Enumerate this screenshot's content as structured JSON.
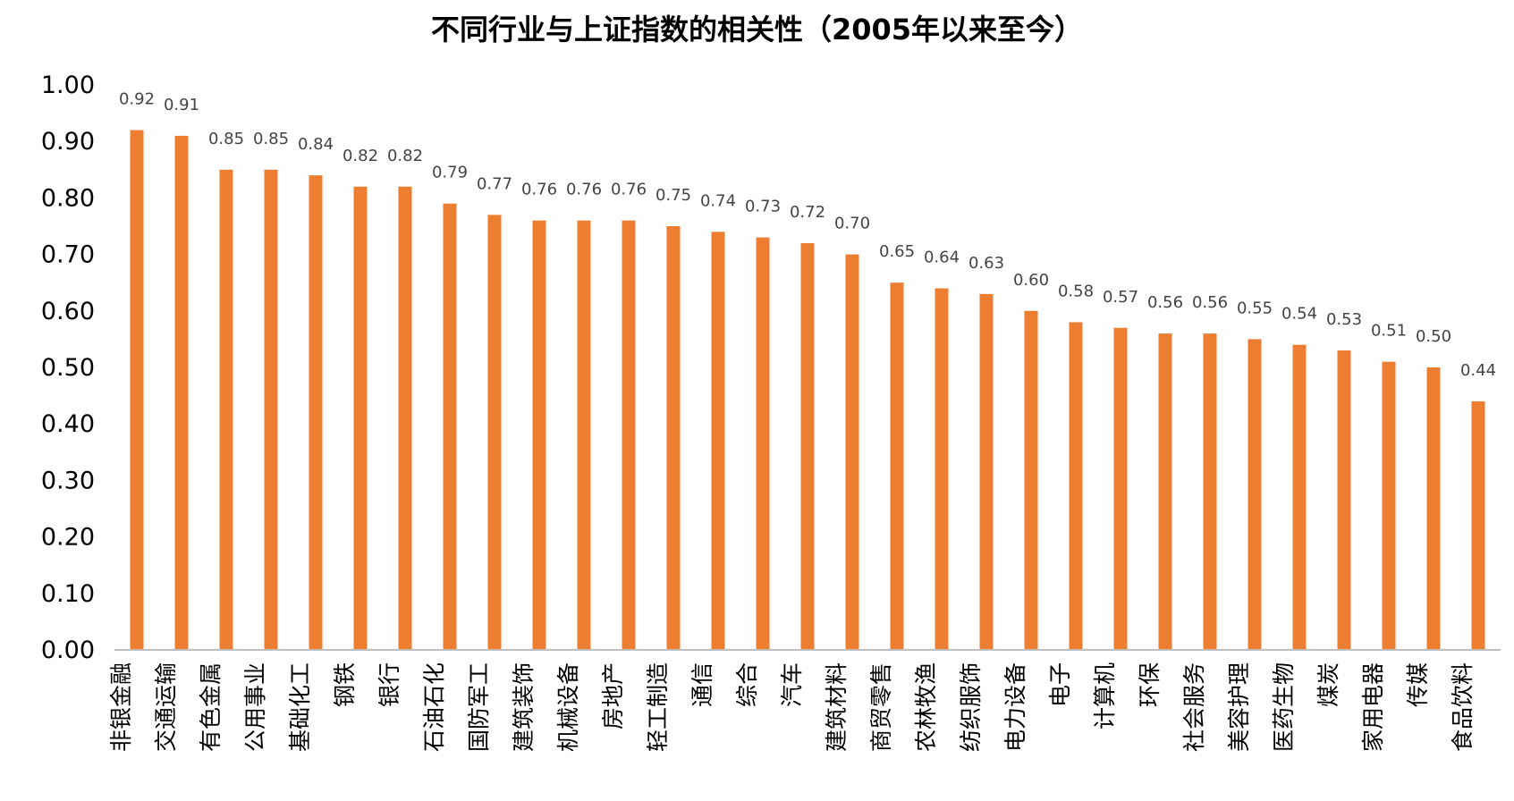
{
  "chart_data": {
    "type": "bar",
    "title": "不同行业与上证指数的相关性（2005年以来至今）",
    "xlabel": "",
    "ylabel": "",
    "ylim": [
      0,
      1.0
    ],
    "yticks": [
      "0.00",
      "0.10",
      "0.20",
      "0.30",
      "0.40",
      "0.50",
      "0.60",
      "0.70",
      "0.80",
      "0.90",
      "1.00"
    ],
    "grid": false,
    "legend": "none",
    "bar_color": "#ED7D31",
    "categories": [
      "非银金融",
      "交通运输",
      "有色金属",
      "公用事业",
      "基础化工",
      "钢铁",
      "银行",
      "石油石化",
      "国防军工",
      "建筑装饰",
      "机械设备",
      "房地产",
      "轻工制造",
      "通信",
      "综合",
      "汽车",
      "建筑材料",
      "商贸零售",
      "农林牧渔",
      "纺织服饰",
      "电力设备",
      "电子",
      "计算机",
      "环保",
      "社会服务",
      "美容护理",
      "医药生物",
      "煤炭",
      "家用电器",
      "传媒",
      "食品饮料"
    ],
    "values": [
      0.92,
      0.91,
      0.85,
      0.85,
      0.84,
      0.82,
      0.82,
      0.79,
      0.77,
      0.76,
      0.76,
      0.76,
      0.75,
      0.74,
      0.73,
      0.72,
      0.7,
      0.65,
      0.64,
      0.63,
      0.6,
      0.58,
      0.57,
      0.56,
      0.56,
      0.55,
      0.54,
      0.53,
      0.51,
      0.5,
      0.44
    ],
    "value_labels": [
      "0.92",
      "0.91",
      "0.85",
      "0.85",
      "0.84",
      "0.82",
      "0.82",
      "0.79",
      "0.77",
      "0.76",
      "0.76",
      "0.76",
      "0.75",
      "0.74",
      "0.73",
      "0.72",
      "0.70",
      "0.65",
      "0.64",
      "0.63",
      "0.60",
      "0.58",
      "0.57",
      "0.56",
      "0.56",
      "0.55",
      "0.54",
      "0.53",
      "0.51",
      "0.50",
      "0.44"
    ]
  }
}
